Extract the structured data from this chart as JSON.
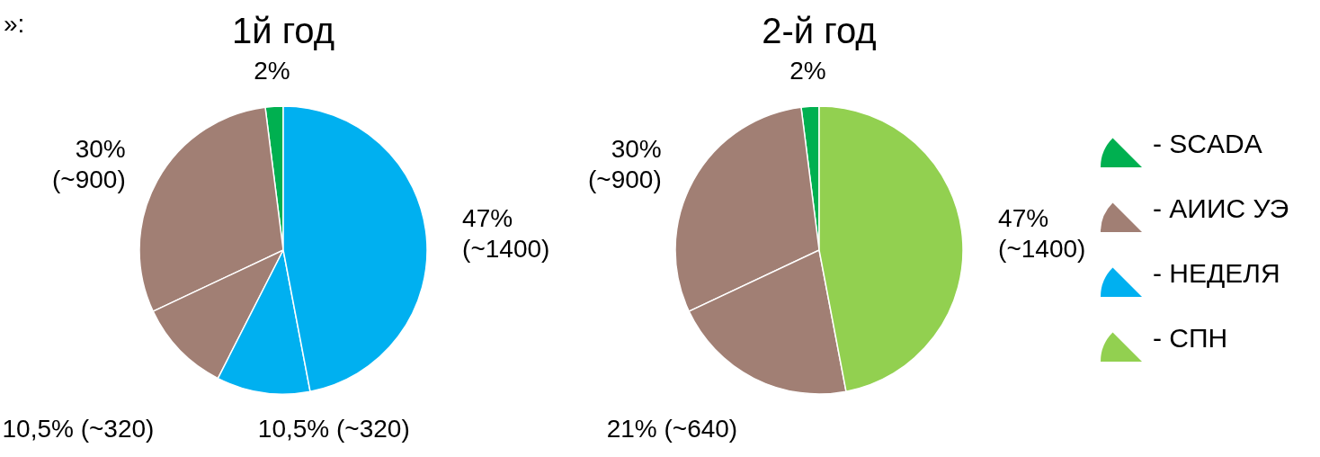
{
  "chart_data": [
    {
      "type": "pie",
      "title": "1й год",
      "categories": [
        "- SCADA",
        "- АИИС УЭ",
        null,
        "- НЕДЕЛЯ",
        null
      ],
      "values": [
        2,
        30,
        10.5,
        10.5,
        47
      ],
      "colors": [
        "#00b050",
        "#a17f74",
        "#a17f74",
        "#00b0f0",
        "#00b0f0"
      ],
      "value_labels": [
        "2%",
        "30%\n(~900)",
        "10,5% (~320)",
        "10,5% (~320)",
        "47%\n(~1400)"
      ],
      "annotations": [
        "»:"
      ],
      "legend": "right"
    },
    {
      "type": "pie",
      "title": "2-й год",
      "categories": [
        null,
        null,
        null,
        "- СПН"
      ],
      "values": [
        2,
        30,
        21,
        47
      ],
      "colors": [
        "#00b050",
        "#a17f74",
        "#a17f74",
        "#92d050"
      ],
      "value_labels": [
        "2%",
        "30%\n(~900)",
        "21% (~640)",
        "47%\n(~1400)"
      ],
      "legend": "right"
    }
  ]
}
